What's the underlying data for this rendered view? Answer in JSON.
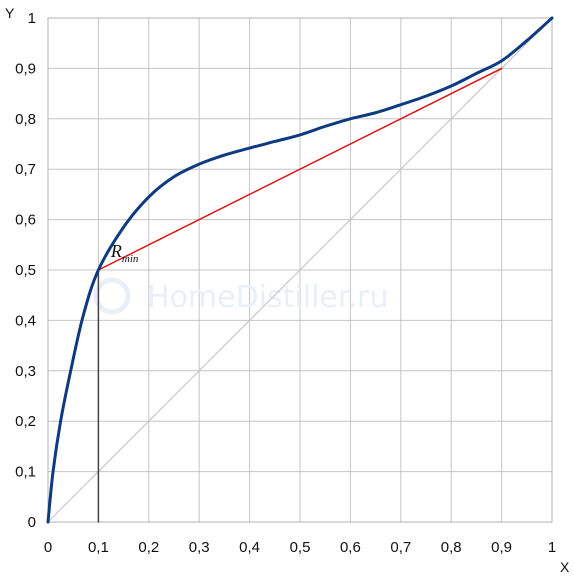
{
  "chart_data": {
    "type": "line",
    "title": "",
    "xlabel": "X",
    "ylabel": "Y",
    "xlim": [
      0,
      1
    ],
    "ylim": [
      0,
      1
    ],
    "grid": true,
    "x_ticks": [
      "0",
      "0,1",
      "0,2",
      "0,3",
      "0,4",
      "0,5",
      "0,6",
      "0,7",
      "0,8",
      "0,9",
      "1"
    ],
    "y_ticks": [
      "0",
      "0,1",
      "0,2",
      "0,3",
      "0,4",
      "0,5",
      "0,6",
      "0,7",
      "0,8",
      "0,9",
      "1"
    ],
    "series": [
      {
        "color": "#0d3a80",
        "points": [
          [
            0,
            0
          ],
          [
            0.01,
            0.1
          ],
          [
            0.025,
            0.2
          ],
          [
            0.045,
            0.3
          ],
          [
            0.07,
            0.41
          ],
          [
            0.1,
            0.5
          ],
          [
            0.15,
            0.585
          ],
          [
            0.2,
            0.645
          ],
          [
            0.25,
            0.685
          ],
          [
            0.3,
            0.71
          ],
          [
            0.35,
            0.728
          ],
          [
            0.4,
            0.742
          ],
          [
            0.45,
            0.755
          ],
          [
            0.5,
            0.768
          ],
          [
            0.55,
            0.785
          ],
          [
            0.6,
            0.8
          ],
          [
            0.65,
            0.812
          ],
          [
            0.7,
            0.828
          ],
          [
            0.75,
            0.845
          ],
          [
            0.8,
            0.865
          ],
          [
            0.85,
            0.89
          ],
          [
            0.9,
            0.915
          ],
          [
            0.95,
            0.955
          ],
          [
            1,
            1
          ]
        ]
      },
      {
        "color": "#e01010",
        "points": [
          [
            0.1,
            0.5
          ],
          [
            0.9,
            0.9
          ]
        ]
      },
      {
        "color": "#c8c8c8",
        "points": [
          [
            0,
            0
          ],
          [
            1,
            1
          ]
        ]
      },
      {
        "color": "#444444",
        "points": [
          [
            0.1,
            0
          ],
          [
            0.1,
            0.5
          ]
        ]
      }
    ],
    "annotations": [
      {
        "text": "R",
        "subscript": "min",
        "x": 0.22,
        "y": 0.52
      }
    ],
    "watermark": "HomeDistiller.ru"
  }
}
